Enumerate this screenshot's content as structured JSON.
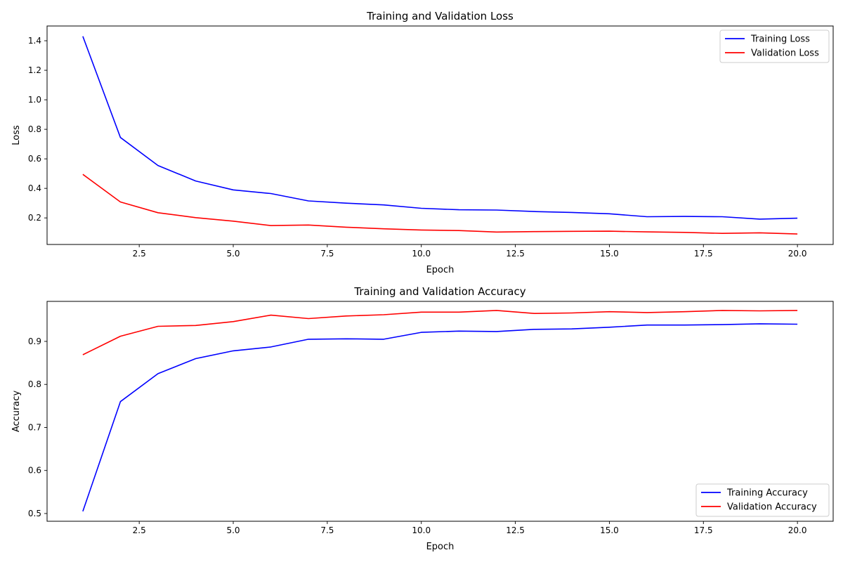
{
  "chart_data": [
    {
      "type": "line",
      "title": "Training and Validation Loss",
      "xlabel": "Epoch",
      "ylabel": "Loss",
      "xlim": [
        0.05,
        20.95
      ],
      "ylim": [
        0.02,
        1.5
      ],
      "xticks": [
        2.5,
        5.0,
        7.5,
        10.0,
        12.5,
        15.0,
        17.5,
        20.0
      ],
      "xtick_labels": [
        "2.5",
        "5.0",
        "7.5",
        "10.0",
        "12.5",
        "15.0",
        "17.5",
        "20.0"
      ],
      "yticks": [
        0.2,
        0.4,
        0.6,
        0.8,
        1.0,
        1.2,
        1.4
      ],
      "ytick_labels": [
        "0.2",
        "0.4",
        "0.6",
        "0.8",
        "1.0",
        "1.2",
        "1.4"
      ],
      "legend_position": "top-right",
      "grid": false,
      "x": [
        1,
        2,
        3,
        4,
        5,
        6,
        7,
        8,
        9,
        10,
        11,
        12,
        13,
        14,
        15,
        16,
        17,
        18,
        19,
        20
      ],
      "series": [
        {
          "name": "Training Loss",
          "color": "#0000ff",
          "values": [
            1.43,
            0.745,
            0.555,
            0.45,
            0.39,
            0.365,
            0.315,
            0.3,
            0.288,
            0.265,
            0.255,
            0.253,
            0.243,
            0.237,
            0.228,
            0.208,
            0.21,
            0.208,
            0.192,
            0.198
          ]
        },
        {
          "name": "Validation Loss",
          "color": "#ff0000",
          "values": [
            0.495,
            0.308,
            0.235,
            0.202,
            0.178,
            0.148,
            0.152,
            0.137,
            0.126,
            0.118,
            0.114,
            0.104,
            0.107,
            0.109,
            0.11,
            0.105,
            0.102,
            0.095,
            0.099,
            0.091
          ]
        }
      ]
    },
    {
      "type": "line",
      "title": "Training and Validation Accuracy",
      "xlabel": "Epoch",
      "ylabel": "Accuracy",
      "xlim": [
        0.05,
        20.95
      ],
      "ylim": [
        0.482,
        0.993
      ],
      "xticks": [
        2.5,
        5.0,
        7.5,
        10.0,
        12.5,
        15.0,
        17.5,
        20.0
      ],
      "xtick_labels": [
        "2.5",
        "5.0",
        "7.5",
        "10.0",
        "12.5",
        "15.0",
        "17.5",
        "20.0"
      ],
      "yticks": [
        0.5,
        0.6,
        0.7,
        0.8,
        0.9
      ],
      "ytick_labels": [
        "0.5",
        "0.6",
        "0.7",
        "0.8",
        "0.9"
      ],
      "legend_position": "bottom-right",
      "grid": false,
      "x": [
        1,
        2,
        3,
        4,
        5,
        6,
        7,
        8,
        9,
        10,
        11,
        12,
        13,
        14,
        15,
        16,
        17,
        18,
        19,
        20
      ],
      "series": [
        {
          "name": "Training Accuracy",
          "color": "#0000ff",
          "values": [
            0.505,
            0.76,
            0.825,
            0.86,
            0.878,
            0.887,
            0.905,
            0.906,
            0.905,
            0.921,
            0.924,
            0.923,
            0.928,
            0.929,
            0.933,
            0.938,
            0.938,
            0.939,
            0.941,
            0.94
          ]
        },
        {
          "name": "Validation Accuracy",
          "color": "#ff0000",
          "values": [
            0.869,
            0.912,
            0.935,
            0.937,
            0.946,
            0.961,
            0.953,
            0.959,
            0.962,
            0.968,
            0.968,
            0.972,
            0.965,
            0.966,
            0.969,
            0.967,
            0.969,
            0.972,
            0.971,
            0.972
          ]
        }
      ]
    }
  ]
}
